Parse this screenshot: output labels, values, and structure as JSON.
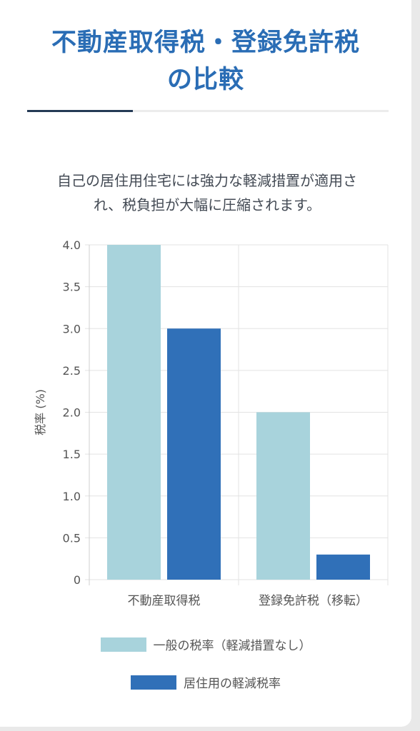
{
  "header": {
    "title_line1": "不動産取得税・登録免許税",
    "title_line2": "の比較",
    "subtitle_line1": "自己の居住用住宅には強力な軽減措置が適用さ",
    "subtitle_line2": "れ、税負担が大幅に圧縮されます。"
  },
  "colors": {
    "title": "#2a6db5",
    "general": "#a8d3dc",
    "reduced": "#3070b8"
  },
  "chart_data": {
    "type": "bar",
    "title": "",
    "xlabel": "",
    "ylabel": "税率 (%)",
    "ylim": [
      0,
      4.0
    ],
    "yticks": [
      "4.0",
      "3.5",
      "3.0",
      "2.5",
      "2.0",
      "1.5",
      "1.0",
      "0.5",
      "0"
    ],
    "categories": [
      "不動産取得税",
      "登録免許税（移転）"
    ],
    "series": [
      {
        "name": "一般の税率（軽減措置なし）",
        "values": [
          4.0,
          2.0
        ],
        "color": "#a8d3dc"
      },
      {
        "name": "居住用の軽減税率",
        "values": [
          3.0,
          0.3
        ],
        "color": "#3070b8"
      }
    ],
    "grid": true,
    "legend_position": "bottom"
  }
}
